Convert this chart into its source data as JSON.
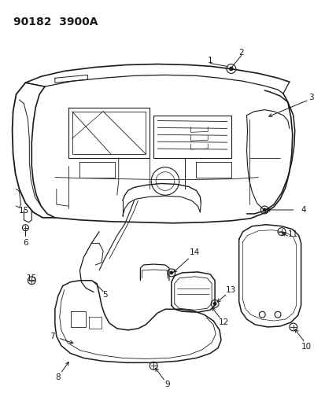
{
  "title": "90182  3900A",
  "bg_color": "#ffffff",
  "line_color": "#1a1a1a",
  "fig_width": 4.14,
  "fig_height": 5.33,
  "dpi": 100
}
